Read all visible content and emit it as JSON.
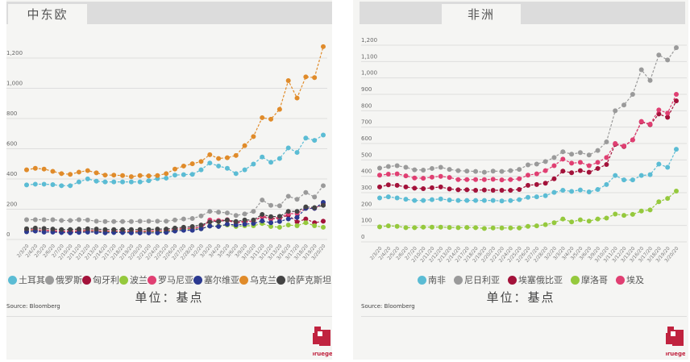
{
  "dates": [
    "2/3/20",
    "2/4/20",
    "2/5/20",
    "2/6/20",
    "2/7/20",
    "2/10/20",
    "2/11/20",
    "2/12/20",
    "2/13/20",
    "2/14/20",
    "2/17/20",
    "2/18/20",
    "2/19/20",
    "2/20/20",
    "2/21/20",
    "2/24/20",
    "2/25/20",
    "2/26/20",
    "2/27/20",
    "2/28/20",
    "3/2/20",
    "3/3/20",
    "3/4/20",
    "3/5/20",
    "3/6/20",
    "3/9/20",
    "3/10/20",
    "3/11/20",
    "3/12/20",
    "3/13/20",
    "3/16/20",
    "3/17/20",
    "3/18/20",
    "3/19/20",
    "3/20/20"
  ],
  "unit_label": "单位：基点",
  "source": "Source: Bloomberg",
  "logo_text": "bruegel",
  "chart_data": [
    {
      "type": "line",
      "title": "中东欧",
      "ylim": [
        0,
        1300
      ],
      "yticks": [
        0,
        200,
        400,
        600,
        800,
        1000,
        1200
      ],
      "ytick_labels": [
        "0",
        "200",
        "400",
        "600",
        "800",
        "1,000",
        "1,200"
      ],
      "series": [
        {
          "name": "土耳其",
          "color": "#5bbcd4",
          "values": [
            350,
            355,
            355,
            352,
            345,
            345,
            370,
            390,
            375,
            370,
            370,
            370,
            370,
            370,
            378,
            392,
            395,
            415,
            418,
            420,
            450,
            495,
            475,
            460,
            425,
            450,
            488,
            535,
            500,
            525,
            595,
            565,
            660,
            645,
            680
          ]
        },
        {
          "name": "俄罗斯",
          "color": "#9a9a9a",
          "values": [
            120,
            120,
            120,
            120,
            115,
            115,
            120,
            118,
            110,
            108,
            108,
            108,
            108,
            110,
            110,
            110,
            110,
            118,
            125,
            128,
            145,
            175,
            170,
            165,
            148,
            158,
            175,
            250,
            215,
            212,
            275,
            255,
            300,
            270,
            345
          ]
        },
        {
          "name": "匈牙利",
          "color": "#a3123a",
          "values": [
            50,
            50,
            48,
            45,
            42,
            42,
            42,
            45,
            42,
            40,
            40,
            42,
            40,
            40,
            40,
            42,
            42,
            52,
            60,
            62,
            70,
            110,
            110,
            115,
            100,
            105,
            110,
            140,
            125,
            130,
            150,
            105,
            125,
            100,
            110
          ]
        },
        {
          "name": "波兰",
          "color": "#95c93d",
          "values": [
            52,
            52,
            50,
            48,
            45,
            45,
            45,
            48,
            45,
            42,
            42,
            42,
            42,
            42,
            42,
            42,
            42,
            50,
            55,
            58,
            60,
            78,
            78,
            85,
            75,
            80,
            80,
            95,
            75,
            70,
            85,
            80,
            100,
            80,
            70
          ]
        },
        {
          "name": "罗马尼亚",
          "color": "#e03f72",
          "values": [
            55,
            55,
            50,
            48,
            45,
            45,
            48,
            50,
            48,
            45,
            45,
            45,
            45,
            45,
            45,
            48,
            48,
            58,
            62,
            65,
            72,
            118,
            115,
            120,
            105,
            110,
            110,
            145,
            130,
            135,
            160,
            160,
            195,
            195,
            225
          ]
        },
        {
          "name": "塞尔维亚",
          "color": "#2b3990",
          "values": [
            40,
            45,
            38,
            38,
            35,
            33,
            36,
            38,
            38,
            33,
            35,
            35,
            33,
            33,
            33,
            33,
            36,
            45,
            50,
            50,
            60,
            78,
            75,
            90,
            85,
            90,
            95,
            112,
            100,
            108,
            125,
            135,
            195,
            195,
            235
          ]
        },
        {
          "name": "乌克兰",
          "color": "#e08b2a",
          "values": [
            450,
            460,
            455,
            440,
            425,
            420,
            435,
            445,
            430,
            415,
            415,
            412,
            405,
            412,
            410,
            412,
            425,
            455,
            475,
            490,
            505,
            550,
            525,
            530,
            545,
            610,
            670,
            795,
            785,
            850,
            1040,
            925,
            1065,
            1060,
            1265
          ]
        },
        {
          "name": "哈萨克斯坦",
          "color": "#444444",
          "values": [
            60,
            65,
            62,
            58,
            55,
            55,
            58,
            60,
            58,
            55,
            55,
            55,
            55,
            55,
            55,
            58,
            58,
            65,
            70,
            75,
            85,
            105,
            108,
            118,
            108,
            118,
            118,
            155,
            140,
            142,
            175,
            175,
            205,
            200,
            215
          ]
        }
      ]
    },
    {
      "type": "line",
      "title": "非洲",
      "ylim": [
        0,
        1200
      ],
      "yticks": [
        0,
        100,
        200,
        300,
        400,
        500,
        600,
        700,
        800,
        900,
        1000,
        1100,
        1200
      ],
      "ytick_labels": [
        "0",
        "100",
        "200",
        "300",
        "400",
        "500",
        "600",
        "700",
        "800",
        "900",
        "1,000",
        "1,100",
        "1,200"
      ],
      "series": [
        {
          "name": "南非",
          "color": "#5bbcd4",
          "values": [
            258,
            265,
            258,
            250,
            243,
            243,
            248,
            252,
            245,
            243,
            243,
            243,
            243,
            243,
            240,
            242,
            248,
            262,
            265,
            272,
            292,
            305,
            298,
            307,
            295,
            310,
            340,
            395,
            368,
            368,
            395,
            400,
            465,
            445,
            555
          ]
        },
        {
          "name": "尼日利亚",
          "color": "#9a9a9a",
          "values": [
            440,
            450,
            455,
            445,
            430,
            428,
            438,
            445,
            432,
            425,
            422,
            420,
            415,
            422,
            420,
            425,
            432,
            460,
            465,
            480,
            505,
            540,
            525,
            535,
            520,
            548,
            600,
            790,
            825,
            890,
            1040,
            975,
            1130,
            1100,
            1175
          ]
        },
        {
          "name": "埃塞俄比亚",
          "color": "#a3123a",
          "values": [
            325,
            338,
            335,
            325,
            318,
            315,
            320,
            325,
            313,
            308,
            308,
            305,
            307,
            305,
            305,
            305,
            310,
            335,
            340,
            348,
            375,
            422,
            412,
            425,
            415,
            438,
            462,
            585,
            572,
            612,
            722,
            705,
            770,
            750,
            850
          ]
        },
        {
          "name": "摩洛哥",
          "color": "#95c93d",
          "values": [
            82,
            88,
            85,
            77,
            77,
            80,
            80,
            80,
            78,
            77,
            78,
            77,
            72,
            75,
            75,
            75,
            75,
            85,
            88,
            95,
            107,
            130,
            112,
            125,
            117,
            130,
            135,
            160,
            152,
            158,
            178,
            185,
            235,
            255,
            300
          ]
        },
        {
          "name": "埃及",
          "color": "#e03f72",
          "values": [
            397,
            403,
            405,
            393,
            380,
            378,
            385,
            390,
            383,
            370,
            370,
            370,
            370,
            372,
            368,
            370,
            375,
            397,
            405,
            425,
            455,
            495,
            470,
            475,
            455,
            475,
            505,
            590,
            575,
            612,
            725,
            708,
            795,
            775,
            890
          ]
        }
      ]
    }
  ]
}
